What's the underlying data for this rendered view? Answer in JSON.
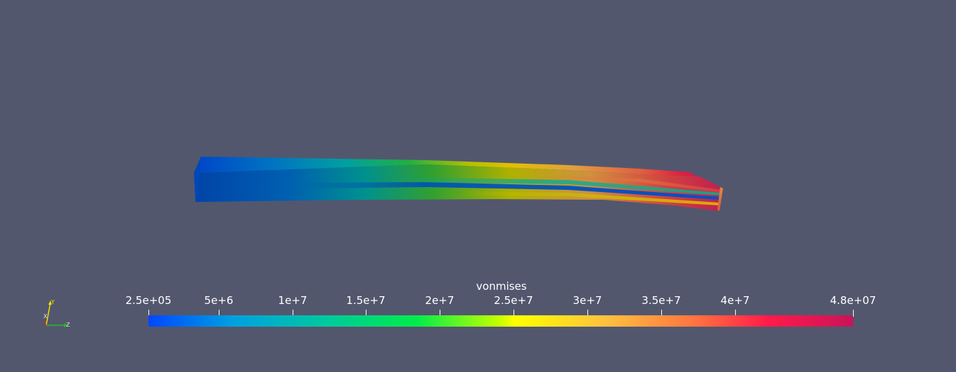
{
  "scalar_bar": {
    "title": "vonmises",
    "range_min_label": "2.5e+05",
    "range_max_label": "4.8e+07",
    "range": [
      250000,
      48000000
    ],
    "ticks": [
      {
        "value": 250000,
        "label": "2.5e+05"
      },
      {
        "value": 5000000,
        "label": "5e+6"
      },
      {
        "value": 10000000,
        "label": "1e+7"
      },
      {
        "value": 15000000,
        "label": "1.5e+7"
      },
      {
        "value": 20000000,
        "label": "2e+7"
      },
      {
        "value": 25000000,
        "label": "2.5e+7"
      },
      {
        "value": 30000000,
        "label": "3e+7"
      },
      {
        "value": 35000000,
        "label": "3.5e+7"
      },
      {
        "value": 40000000,
        "label": "4e+7"
      },
      {
        "value": 48000000,
        "label": "4.8e+07"
      }
    ],
    "colormap": [
      "#0047ff",
      "#00b4d8",
      "#00ec4a",
      "#d7ff00",
      "#ffff00",
      "#ffb43c",
      "#ff5a32",
      "#ff1a4a",
      "#c8145a"
    ]
  },
  "orientation_axes": {
    "y_label": "Y",
    "x_label": "X",
    "z_label": "Z",
    "y_color": "#f0e000",
    "x_color": "#e02020",
    "z_color": "#20c020"
  },
  "colors": {
    "background": "#52576e"
  }
}
